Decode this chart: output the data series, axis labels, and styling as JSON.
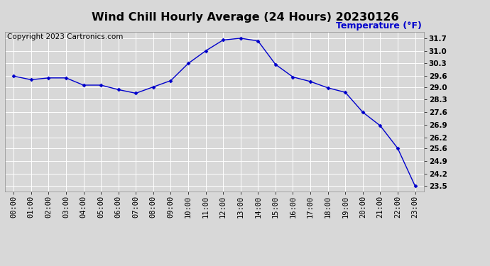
{
  "title": "Wind Chill Hourly Average (24 Hours) 20230126",
  "copyright_text": "Copyright 2023 Cartronics.com",
  "ylabel": "Temperature (°F)",
  "x_labels": [
    "00:00",
    "01:00",
    "02:00",
    "03:00",
    "04:00",
    "05:00",
    "06:00",
    "07:00",
    "08:00",
    "09:00",
    "10:00",
    "11:00",
    "12:00",
    "13:00",
    "14:00",
    "15:00",
    "16:00",
    "17:00",
    "18:00",
    "19:00",
    "20:00",
    "21:00",
    "22:00",
    "23:00"
  ],
  "x_values": [
    0,
    1,
    2,
    3,
    4,
    5,
    6,
    7,
    8,
    9,
    10,
    11,
    12,
    13,
    14,
    15,
    16,
    17,
    18,
    19,
    20,
    21,
    22,
    23
  ],
  "y_values": [
    29.6,
    29.4,
    29.5,
    29.5,
    29.1,
    29.1,
    28.85,
    28.65,
    29.0,
    29.35,
    30.3,
    31.0,
    31.6,
    31.7,
    31.55,
    30.25,
    29.55,
    29.3,
    28.95,
    28.7,
    27.6,
    26.85,
    25.6,
    23.5
  ],
  "line_color": "#0000cc",
  "marker": "D",
  "marker_size": 2.5,
  "ylim_min": 23.2,
  "ylim_max": 32.05,
  "yticks": [
    23.5,
    24.2,
    24.9,
    25.6,
    26.2,
    26.9,
    27.6,
    28.3,
    29.0,
    29.6,
    30.3,
    31.0,
    31.7
  ],
  "background_color": "#d8d8d8",
  "plot_bg_color": "#d8d8d8",
  "grid_color": "#ffffff",
  "title_fontsize": 11.5,
  "ylabel_fontsize": 9,
  "tick_fontsize": 7.5,
  "copyright_fontsize": 7.5
}
